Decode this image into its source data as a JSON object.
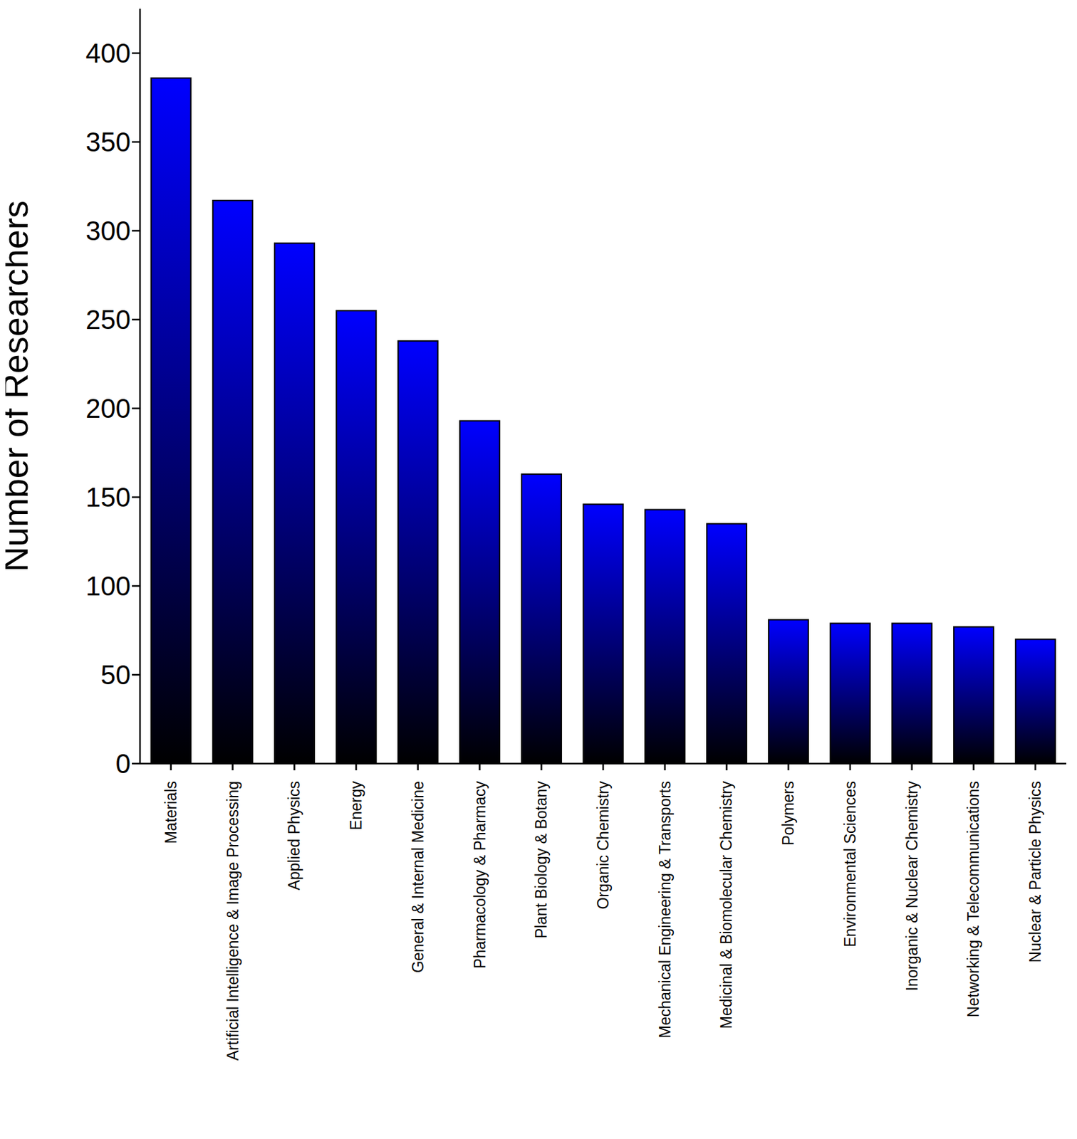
{
  "chart_data": {
    "type": "bar",
    "ylabel": "Number of Researchers",
    "categories": [
      "Materials",
      "Artificial Intelligence & Image Processing",
      "Applied Physics",
      "Energy",
      "General & Internal Medicine",
      "Pharmacology & Pharmacy",
      "Plant Biology & Botany",
      "Organic Chemistry",
      "Mechanical Engineering & Transports",
      "Medicinal & Biomolecular Chemistry",
      "Polymers",
      "Environmental Sciences",
      "Inorganic & Nuclear Chemistry",
      "Networking & Telecommunications",
      "Nuclear & Particle Physics"
    ],
    "values": [
      386,
      317,
      293,
      255,
      238,
      193,
      163,
      146,
      143,
      135,
      81,
      79,
      79,
      77,
      70
    ],
    "color": "#0000ff",
    "ylim": [
      0,
      425
    ],
    "yticks": [
      0,
      50,
      100,
      150,
      200,
      250,
      300,
      350,
      400
    ],
    "grid": false
  }
}
